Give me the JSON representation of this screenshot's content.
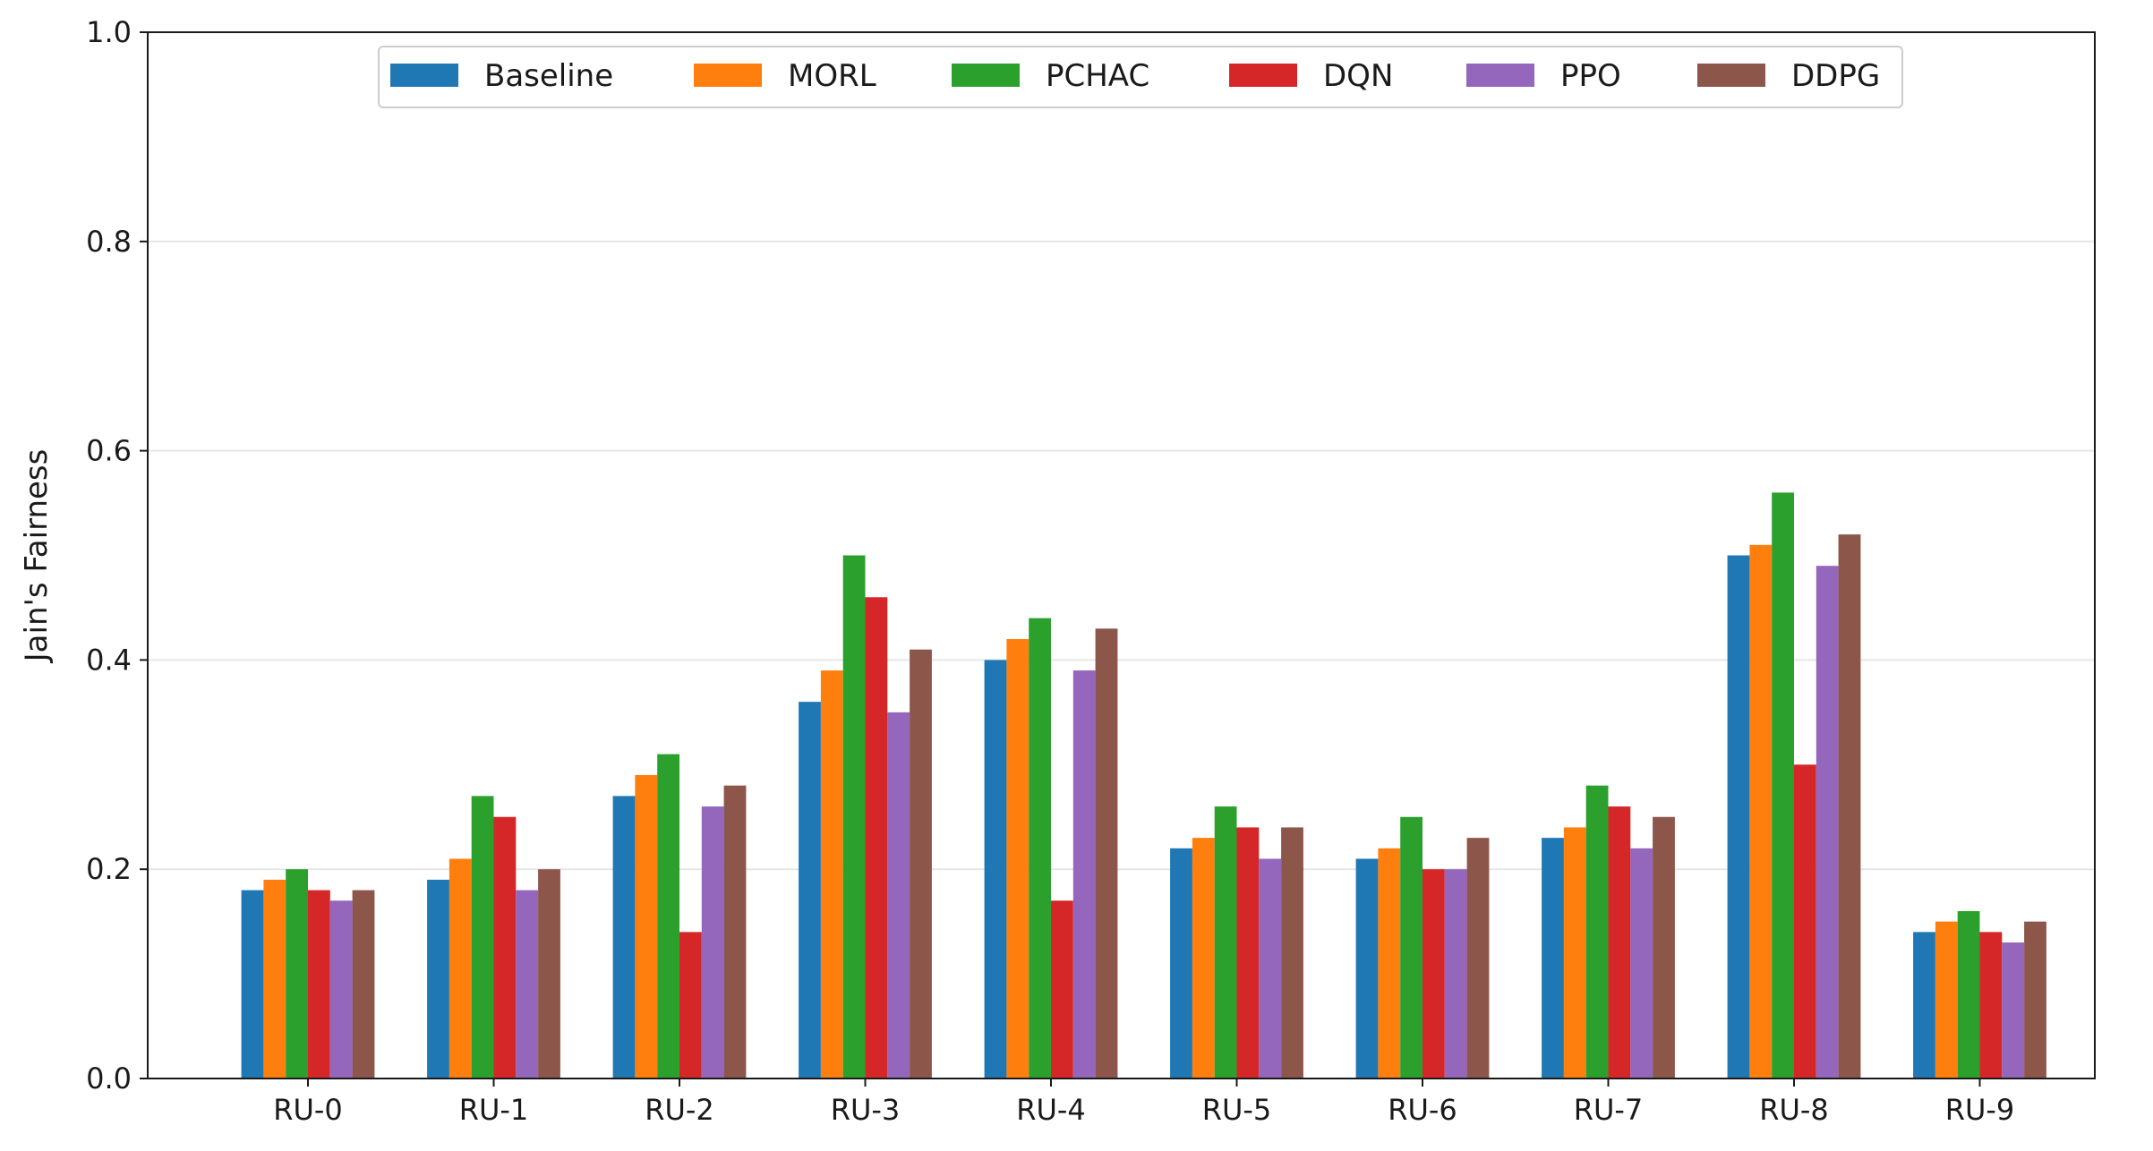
{
  "chart_data": {
    "type": "bar",
    "title": "",
    "xlabel": "",
    "ylabel": "Jain's Fairness",
    "ylim": [
      0,
      1.0
    ],
    "yticks": [
      "0.0",
      "0.2",
      "0.4",
      "0.6",
      "0.8",
      "1.0"
    ],
    "grid": "y",
    "legend_position": "top-center",
    "categories": [
      "RU-0",
      "RU-1",
      "RU-2",
      "RU-3",
      "RU-4",
      "RU-5",
      "RU-6",
      "RU-7",
      "RU-8",
      "RU-9"
    ],
    "series": [
      {
        "name": "Baseline",
        "color": "#1f77b4",
        "values": [
          0.18,
          0.19,
          0.27,
          0.36,
          0.4,
          0.22,
          0.21,
          0.23,
          0.5,
          0.14
        ]
      },
      {
        "name": "MORL",
        "color": "#ff7f0e",
        "values": [
          0.19,
          0.21,
          0.29,
          0.39,
          0.42,
          0.23,
          0.22,
          0.24,
          0.51,
          0.15
        ]
      },
      {
        "name": "PCHAC",
        "color": "#2ca02c",
        "values": [
          0.2,
          0.27,
          0.31,
          0.5,
          0.44,
          0.26,
          0.25,
          0.28,
          0.56,
          0.16
        ]
      },
      {
        "name": "DQN",
        "color": "#d62728",
        "values": [
          0.18,
          0.25,
          0.14,
          0.46,
          0.17,
          0.24,
          0.2,
          0.26,
          0.3,
          0.14
        ]
      },
      {
        "name": "PPO",
        "color": "#9467bd",
        "values": [
          0.17,
          0.18,
          0.26,
          0.35,
          0.39,
          0.21,
          0.2,
          0.22,
          0.49,
          0.13
        ]
      },
      {
        "name": "DDPG",
        "color": "#8c564b",
        "values": [
          0.18,
          0.2,
          0.28,
          0.41,
          0.43,
          0.24,
          0.23,
          0.25,
          0.52,
          0.15
        ]
      }
    ]
  }
}
